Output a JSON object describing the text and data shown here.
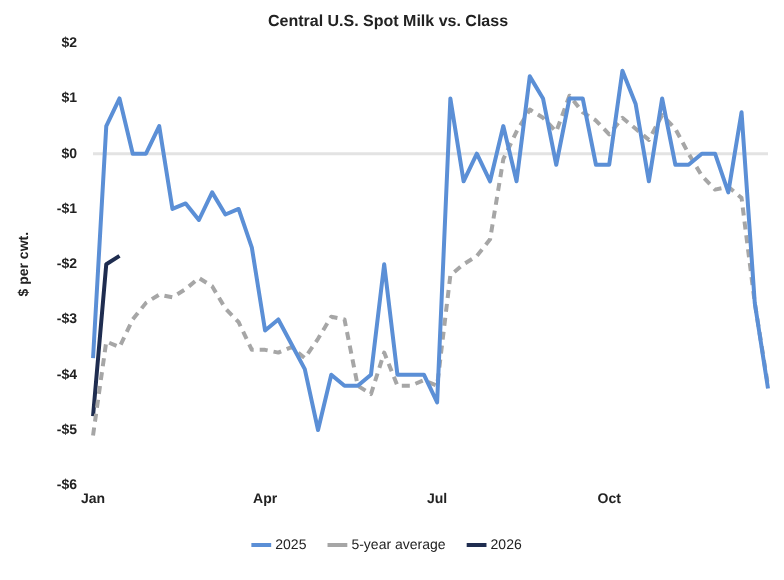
{
  "chart_data": {
    "type": "line",
    "title": "Central U.S. Spot Milk vs. Class",
    "ylabel": "$ per cwt.",
    "categories": [
      "Jan",
      null,
      null,
      null,
      null,
      null,
      null,
      null,
      null,
      null,
      null,
      null,
      null,
      "Apr",
      null,
      null,
      null,
      null,
      null,
      null,
      null,
      null,
      null,
      null,
      null,
      null,
      "Jul",
      null,
      null,
      null,
      null,
      null,
      null,
      null,
      null,
      null,
      null,
      null,
      null,
      "Oct",
      null,
      null,
      null,
      null,
      null,
      null,
      null,
      null,
      null,
      null,
      null,
      null
    ],
    "series": [
      {
        "name": "2025",
        "color": "#5b8fd6",
        "line_style": "solid",
        "values": [
          -3.7,
          0.5,
          1.0,
          0,
          0,
          0.5,
          -1.0,
          -0.9,
          -1.2,
          -0.7,
          -1.1,
          -1.0,
          -1.7,
          -3.2,
          -3.0,
          -3.45,
          -3.9,
          -5.0,
          -4.0,
          -4.2,
          -4.2,
          -4.0,
          -2.0,
          -4.0,
          -4.0,
          -4.0,
          -4.5,
          1.0,
          -0.5,
          0,
          -0.5,
          0.5,
          -0.5,
          1.4,
          1.0,
          -0.2,
          1.0,
          1.0,
          -0.2,
          -0.2,
          1.5,
          0.9,
          -0.5,
          1.0,
          -0.2,
          -0.2,
          0,
          0,
          -0.7,
          0.75,
          -2.7,
          -4.25
        ]
      },
      {
        "name": "5-year average",
        "color": "#a6a6a6",
        "line_style": "dashed",
        "values": [
          -5.1,
          -3.4,
          -3.5,
          -3.0,
          -2.7,
          -2.55,
          -2.6,
          -2.45,
          -2.25,
          -2.4,
          -2.8,
          -3.05,
          -3.55,
          -3.55,
          -3.6,
          -3.5,
          -3.7,
          -3.35,
          -2.95,
          -3.0,
          -4.2,
          -4.35,
          -3.6,
          -4.2,
          -4.2,
          -4.1,
          -4.2,
          -2.2,
          -2.0,
          -1.85,
          -1.55,
          -0.1,
          0.4,
          0.8,
          0.65,
          0.4,
          1.05,
          0.75,
          0.6,
          0.35,
          0.65,
          0.45,
          0.25,
          0.7,
          0.45,
          0,
          -0.4,
          -0.65,
          -0.6,
          -0.8,
          -2.7,
          -4.2
        ]
      },
      {
        "name": "2026",
        "color": "#1f2d50",
        "line_style": "solid",
        "values": [
          -4.75,
          -2.0,
          -1.85,
          null,
          null,
          null,
          null,
          null,
          null,
          null,
          null,
          null,
          null,
          null,
          null,
          null,
          null,
          null,
          null,
          null,
          null,
          null,
          null,
          null,
          null,
          null,
          null,
          null,
          null,
          null,
          null,
          null,
          null,
          null,
          null,
          null,
          null,
          null,
          null,
          null,
          null,
          null,
          null,
          null,
          null,
          null,
          null,
          null,
          null,
          null,
          null,
          null
        ]
      }
    ],
    "ylim": [
      -6,
      2
    ],
    "yticks": [
      {
        "value": -6,
        "label": "-$6"
      },
      {
        "value": -5,
        "label": "-$5"
      },
      {
        "value": -4,
        "label": "-$4"
      },
      {
        "value": -3,
        "label": "-$3"
      },
      {
        "value": -2,
        "label": "-$2"
      },
      {
        "value": -1,
        "label": "-$1"
      },
      {
        "value": 0,
        "label": "$0"
      },
      {
        "value": 1,
        "label": "$1"
      },
      {
        "value": 2,
        "label": "$2"
      }
    ],
    "ref_lines": [
      {
        "axis": "y",
        "value": 0,
        "color": "#e3e3e3"
      }
    ],
    "grid": false,
    "legend": "bottom",
    "marker": "none"
  }
}
